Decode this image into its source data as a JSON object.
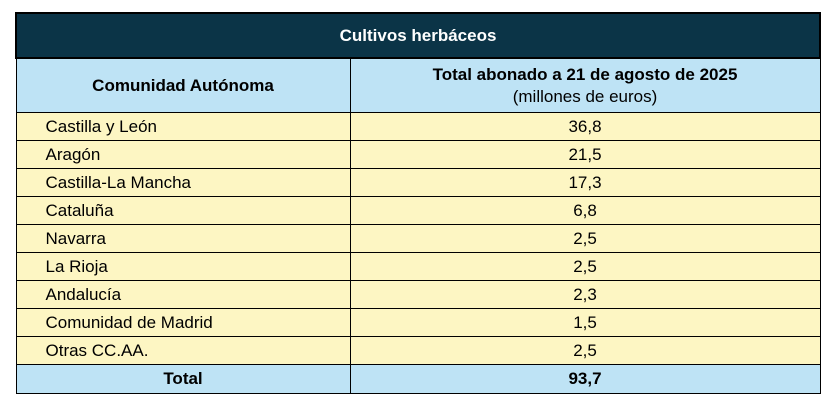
{
  "table": {
    "title": "Cultivos herbáceos",
    "headers": {
      "community": "Comunidad Autónoma",
      "total_main": "Total abonado a 21 de agosto de 2025",
      "total_sub": "(millones de euros)"
    },
    "rows": [
      {
        "name": "Castilla y León",
        "value": "36,8"
      },
      {
        "name": "Aragón",
        "value": "21,5"
      },
      {
        "name": "Castilla-La Mancha",
        "value": "17,3"
      },
      {
        "name": "Cataluña",
        "value": "6,8"
      },
      {
        "name": "Navarra",
        "value": "2,5"
      },
      {
        "name": "La Rioja",
        "value": "2,5"
      },
      {
        "name": "Andalucía",
        "value": "2,3"
      },
      {
        "name": "Comunidad de Madrid",
        "value": "1,5"
      },
      {
        "name": "Otras CC.AA.",
        "value": "2,5"
      }
    ],
    "total": {
      "label": "Total",
      "value": "93,7"
    }
  },
  "colors": {
    "title_bg": "#0b3447",
    "header_bg": "#bee3f5",
    "row_bg": "#fdf6c3"
  }
}
